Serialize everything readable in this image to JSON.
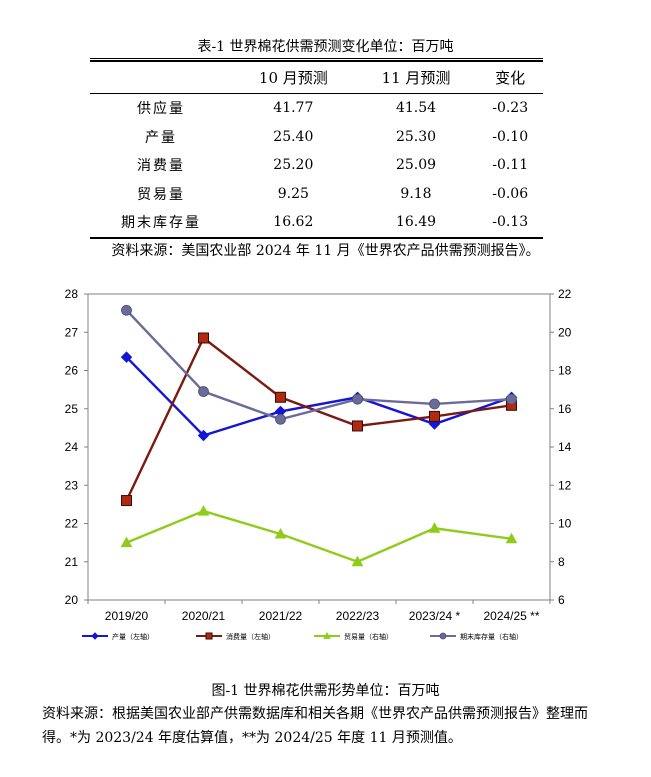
{
  "table": {
    "caption": "表-1 世界棉花供需预测变化单位：百万吨",
    "headers": [
      "",
      "10 月预测",
      "11 月预测",
      "变化"
    ],
    "rows": [
      {
        "label": "供应量",
        "oct": "41.77",
        "nov": "41.54",
        "change": "-0.23"
      },
      {
        "label": "产量",
        "oct": "25.40",
        "nov": "25.30",
        "change": "-0.10"
      },
      {
        "label": "消费量",
        "oct": "25.20",
        "nov": "25.09",
        "change": "-0.11"
      },
      {
        "label": "贸易量",
        "oct": "9.25",
        "nov": "9.18",
        "change": "-0.06"
      },
      {
        "label": "期末库存量",
        "oct": "16.62",
        "nov": "16.49",
        "change": "-0.13"
      }
    ],
    "source": "资料来源：美国农业部 2024 年 11 月《世界农产品供需预测报告》。"
  },
  "figure": {
    "caption": "图-1 世界棉花供需形势单位：百万吨",
    "source": "资料来源：根据美国农业部产供需数据库和相关各期《世界农产品供需预测报告》整理而得。*为 2023/24 年度估算值，**为 2024/25 年度 11 月预测值。"
  },
  "chart_data": {
    "type": "line",
    "categories": [
      "2019/20",
      "2020/21",
      "2021/22",
      "2022/23",
      "2023/24 *",
      "2024/25 **"
    ],
    "left_axis": {
      "min": 20,
      "max": 28,
      "step": 1
    },
    "right_axis": {
      "min": 6,
      "max": 22,
      "step": 2
    },
    "grid": false,
    "legend_position": "bottom",
    "series": [
      {
        "name": "产量（左轴）",
        "axis": "left",
        "color": "#1515d6",
        "marker": "diamond",
        "values": [
          26.35,
          24.3,
          24.93,
          25.3,
          24.6,
          25.3
        ]
      },
      {
        "name": "消费量（左轴）",
        "axis": "left",
        "color": "#7a1a10",
        "marker": "square",
        "values": [
          22.6,
          26.85,
          25.3,
          24.55,
          24.8,
          25.09
        ]
      },
      {
        "name": "贸易量（右轴）",
        "axis": "right",
        "color": "#8fcc1a",
        "marker": "triangle",
        "values": [
          9.0,
          10.65,
          9.45,
          8.0,
          9.75,
          9.2
        ]
      },
      {
        "name": "期末库存量（右轴）",
        "axis": "right",
        "color": "#6b6b9a",
        "marker": "circle",
        "values": [
          21.15,
          16.9,
          15.45,
          16.5,
          16.25,
          16.5
        ]
      }
    ]
  }
}
